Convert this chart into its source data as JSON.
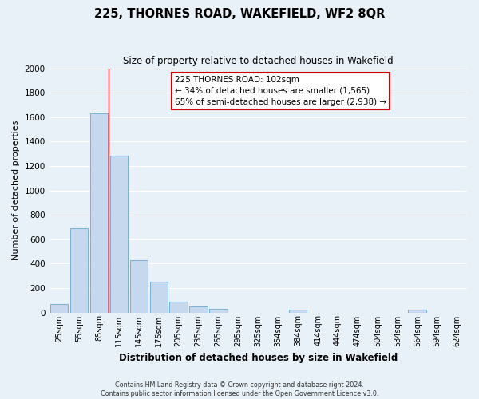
{
  "title": "225, THORNES ROAD, WAKEFIELD, WF2 8QR",
  "subtitle": "Size of property relative to detached houses in Wakefield",
  "xlabel": "Distribution of detached houses by size in Wakefield",
  "ylabel": "Number of detached properties",
  "bar_color": "#c5d8ed",
  "bar_edge_color": "#7aafd4",
  "background_color": "#e8f0f8",
  "fig_background_color": "#e8f0f8",
  "grid_color": "#ffffff",
  "categories": [
    "25sqm",
    "55sqm",
    "85sqm",
    "115sqm",
    "145sqm",
    "175sqm",
    "205sqm",
    "235sqm",
    "265sqm",
    "295sqm",
    "325sqm",
    "354sqm",
    "384sqm",
    "414sqm",
    "444sqm",
    "474sqm",
    "504sqm",
    "534sqm",
    "564sqm",
    "594sqm",
    "624sqm"
  ],
  "values": [
    70,
    690,
    1630,
    1285,
    430,
    250,
    90,
    50,
    30,
    0,
    0,
    0,
    20,
    0,
    0,
    0,
    0,
    0,
    20,
    0,
    0
  ],
  "ylim": [
    0,
    2000
  ],
  "yticks": [
    0,
    200,
    400,
    600,
    800,
    1000,
    1200,
    1400,
    1600,
    1800,
    2000
  ],
  "red_line_x": 2.5,
  "annotation_title": "225 THORNES ROAD: 102sqm",
  "annotation_line1": "← 34% of detached houses are smaller (1,565)",
  "annotation_line2": "65% of semi-detached houses are larger (2,938) →",
  "annotation_box_color": "#ffffff",
  "annotation_border_color": "#cc0000",
  "footer_line1": "Contains HM Land Registry data © Crown copyright and database right 2024.",
  "footer_line2": "Contains public sector information licensed under the Open Government Licence v3.0."
}
